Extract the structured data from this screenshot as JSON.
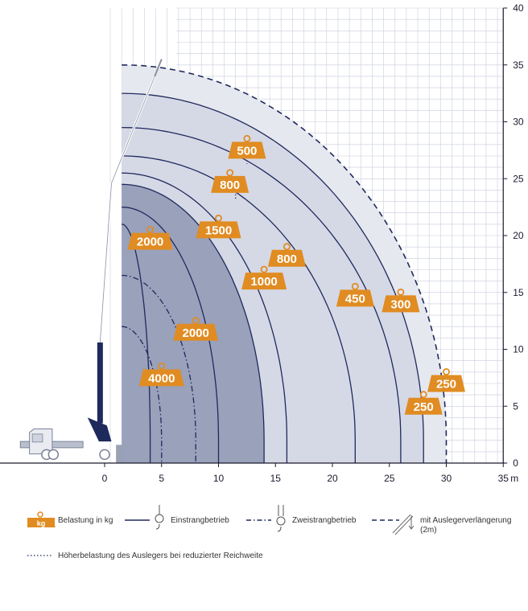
{
  "chart_data": {
    "type": "area",
    "title": "",
    "x_unit": "m",
    "xlim": [
      -9,
      35
    ],
    "ylim": [
      0,
      40
    ],
    "x_ticks": [
      "0",
      "5",
      "10",
      "15",
      "20",
      "25",
      "30",
      "35"
    ],
    "y_ticks": [
      "0",
      "5",
      "10",
      "15",
      "20",
      "25",
      "30",
      "35",
      "40"
    ],
    "grid": true,
    "colors": {
      "navy": "#1f2a5c",
      "orange": "#e08c22",
      "zone_outer": "#e6e8ef",
      "zone_mid": "#d5d9e6",
      "zone_inner": "#8e96b3",
      "grid": "#c9cedc"
    },
    "curves": {
      "single_line": [
        {
          "x_end": 4,
          "y_top": 21
        },
        {
          "x_end": 10,
          "y_top": 22.5
        },
        {
          "x_end": 14,
          "y_top": 24.5
        },
        {
          "x_end": 16,
          "y_top": 25.5
        },
        {
          "x_end": 22,
          "y_top": 27
        },
        {
          "x_end": 26,
          "y_top": 29.5
        },
        {
          "x_end": 28,
          "y_top": 32.5
        }
      ],
      "double_line": [
        {
          "x_end": 5,
          "y_top": 12
        },
        {
          "x_end": 8,
          "y_top": 16.5
        }
      ],
      "extension": {
        "x_end": 30,
        "y_top": 35
      }
    },
    "load_labels": [
      {
        "text": "500",
        "x": 12.5,
        "y": 27.5
      },
      {
        "text": "800",
        "x": 11,
        "y": 24.5
      },
      {
        "text": "2000",
        "x": 4,
        "y": 19.5
      },
      {
        "text": "1500",
        "x": 10,
        "y": 20.5
      },
      {
        "text": "800",
        "x": 16,
        "y": 18
      },
      {
        "text": "1000",
        "x": 14,
        "y": 16
      },
      {
        "text": "450",
        "x": 22,
        "y": 14.5
      },
      {
        "text": "300",
        "x": 26,
        "y": 14
      },
      {
        "text": "2000",
        "x": 8,
        "y": 11.5
      },
      {
        "text": "4000",
        "x": 5,
        "y": 7.5
      },
      {
        "text": "250",
        "x": 30,
        "y": 7
      },
      {
        "text": "250",
        "x": 28,
        "y": 5
      }
    ],
    "legend": {
      "kg_badge": "kg",
      "load": "Belastung in kg",
      "single": "Einstrangbetrieb",
      "double": "Zweistrangbetrieb",
      "extension_line1": "mit Auslegerverlängerung",
      "extension_line2": "(2m)",
      "dotted": "Höherbelastung des Auslegers bei reduzierter Reichweite"
    }
  }
}
